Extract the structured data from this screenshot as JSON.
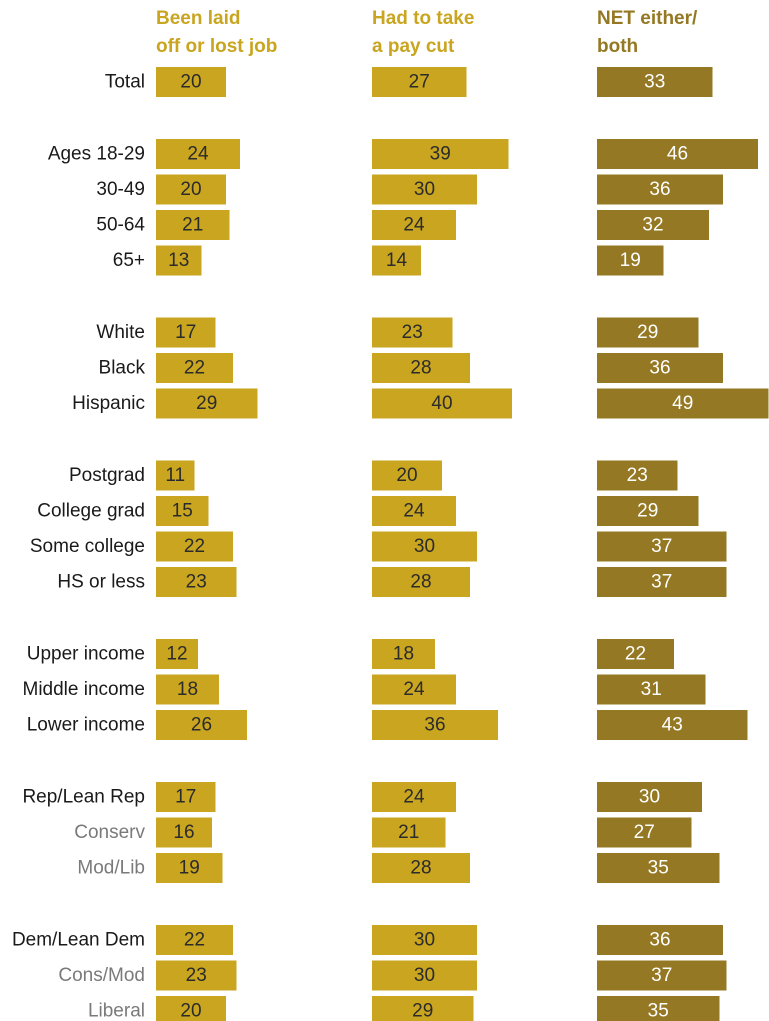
{
  "chart_data": {
    "type": "bar",
    "columns": [
      {
        "key": "laid_off",
        "header": [
          "Been laid",
          "off or lost job"
        ],
        "color": "#c9a520",
        "header_color": "#c9a520",
        "value_color": "#2b2b2b"
      },
      {
        "key": "pay_cut",
        "header": [
          "Had to take",
          "a pay cut"
        ],
        "color": "#c9a520",
        "header_color": "#c9a520",
        "value_color": "#2b2b2b"
      },
      {
        "key": "net",
        "header": [
          "NET either/",
          "both"
        ],
        "color": "#957823",
        "header_color": "#957823",
        "value_color": "#ffffff"
      }
    ],
    "groups": [
      {
        "rows": [
          {
            "label": "Total",
            "muted": false,
            "values": [
              20,
              27,
              33
            ]
          }
        ]
      },
      {
        "rows": [
          {
            "label": "Ages 18-29",
            "muted": false,
            "values": [
              24,
              39,
              46
            ]
          },
          {
            "label": "30-49",
            "muted": false,
            "values": [
              20,
              30,
              36
            ]
          },
          {
            "label": "50-64",
            "muted": false,
            "values": [
              21,
              24,
              32
            ]
          },
          {
            "label": "65+",
            "muted": false,
            "values": [
              13,
              14,
              19
            ]
          }
        ]
      },
      {
        "rows": [
          {
            "label": "White",
            "muted": false,
            "values": [
              17,
              23,
              29
            ]
          },
          {
            "label": "Black",
            "muted": false,
            "values": [
              22,
              28,
              36
            ]
          },
          {
            "label": "Hispanic",
            "muted": false,
            "values": [
              29,
              40,
              49
            ]
          }
        ]
      },
      {
        "rows": [
          {
            "label": "Postgrad",
            "muted": false,
            "values": [
              11,
              20,
              23
            ]
          },
          {
            "label": "College grad",
            "muted": false,
            "values": [
              15,
              24,
              29
            ]
          },
          {
            "label": "Some college",
            "muted": false,
            "values": [
              22,
              30,
              37
            ]
          },
          {
            "label": "HS or less",
            "muted": false,
            "values": [
              23,
              28,
              37
            ]
          }
        ]
      },
      {
        "rows": [
          {
            "label": "Upper income",
            "muted": false,
            "values": [
              12,
              18,
              22
            ]
          },
          {
            "label": "Middle income",
            "muted": false,
            "values": [
              18,
              24,
              31
            ]
          },
          {
            "label": "Lower income",
            "muted": false,
            "values": [
              26,
              36,
              43
            ]
          }
        ]
      },
      {
        "rows": [
          {
            "label": "Rep/Lean Rep",
            "muted": false,
            "values": [
              17,
              24,
              30
            ]
          },
          {
            "label": "Conserv",
            "muted": true,
            "values": [
              16,
              21,
              27
            ]
          },
          {
            "label": "Mod/Lib",
            "muted": true,
            "values": [
              19,
              28,
              35
            ]
          }
        ]
      },
      {
        "rows": [
          {
            "label": "Dem/Lean Dem",
            "muted": false,
            "values": [
              22,
              30,
              36
            ]
          },
          {
            "label": "Cons/Mod",
            "muted": true,
            "values": [
              23,
              30,
              37
            ]
          },
          {
            "label": "Liberal",
            "muted": true,
            "values": [
              20,
              29,
              35
            ]
          }
        ]
      }
    ],
    "label_color": "#1a1a1a",
    "muted_label_color": "#7a7a7a"
  }
}
